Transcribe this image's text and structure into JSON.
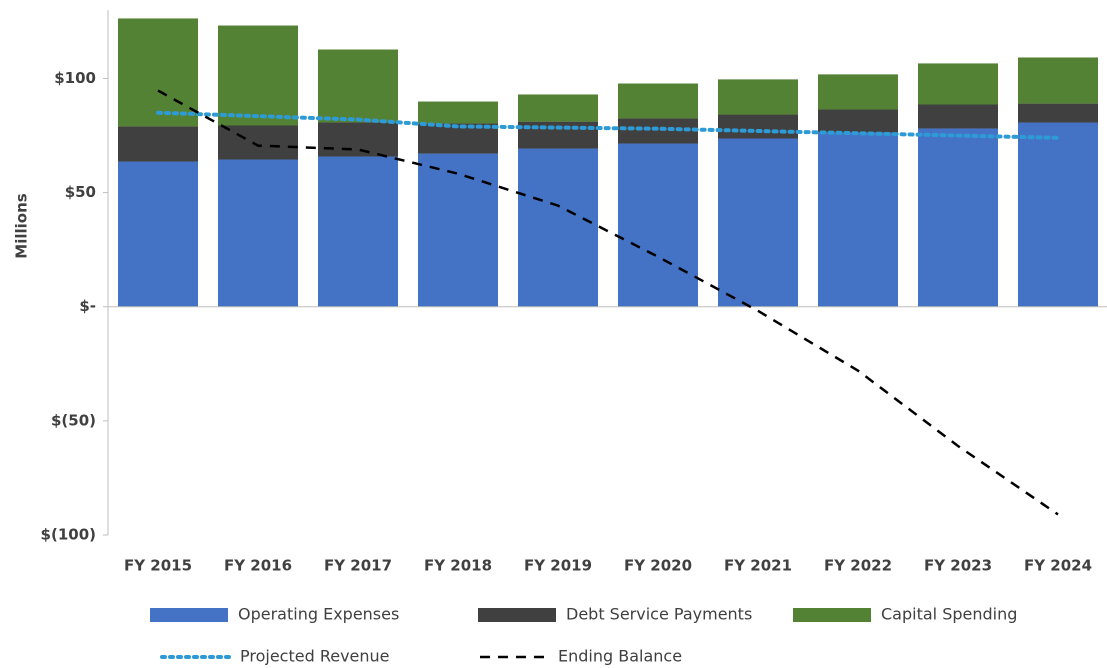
{
  "chart_data": {
    "type": "bar",
    "stacked": true,
    "y_label": "Millions",
    "categories": [
      "FY 2015",
      "FY 2016",
      "FY 2017",
      "FY 2018",
      "FY 2019",
      "FY 2020",
      "FY 2021",
      "FY 2022",
      "FY 2023",
      "FY 2024"
    ],
    "series": [
      {
        "name": "Operating Expenses",
        "color": "#4472c4",
        "type": "bar",
        "values": [
          63.6,
          64.5,
          65.8,
          67.1,
          69.3,
          71.5,
          73.7,
          76.3,
          78.1,
          80.7
        ]
      },
      {
        "name": "Debt Service Payments",
        "color": "#404040",
        "type": "bar",
        "values": [
          15.4,
          14.9,
          14.9,
          13.2,
          11.8,
          11.0,
          10.5,
          10.1,
          10.5,
          8.3
        ]
      },
      {
        "name": "Capital Spending",
        "color": "#548235",
        "type": "bar",
        "values": [
          47.3,
          43.8,
          32.0,
          9.6,
          11.9,
          15.3,
          15.4,
          15.4,
          18.0,
          20.2
        ]
      },
      {
        "name": "Projected Revenue",
        "color": "#2e9bd6",
        "type": "line",
        "dash": "dotted",
        "values": [
          85,
          83.5,
          82,
          79,
          78.5,
          78,
          77,
          76,
          75,
          74
        ]
      },
      {
        "name": "Ending Balance",
        "color": "#000000",
        "type": "line",
        "dash": "dashed",
        "values": [
          94.7,
          70.6,
          68.9,
          58.3,
          44.3,
          21.9,
          -1.8,
          -28,
          -61,
          -91
        ]
      }
    ],
    "ylim": [
      -100,
      130
    ],
    "yticks": [
      {
        "value": -100,
        "label": "$(100)"
      },
      {
        "value": -50,
        "label": "$(50)"
      },
      {
        "value": 0,
        "label": "$-"
      },
      {
        "value": 50,
        "label": "$50"
      },
      {
        "value": 100,
        "label": "$100"
      }
    ],
    "grid": false,
    "legend": "bottom"
  }
}
